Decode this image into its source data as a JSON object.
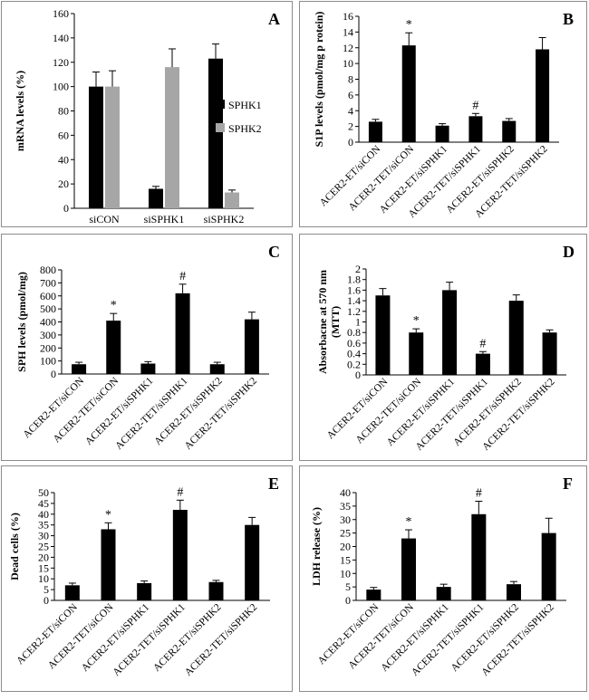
{
  "chart_data": [
    {
      "panel": "A",
      "type": "bar",
      "ylabel": "mRNA levels (%)",
      "ylim": [
        0,
        160
      ],
      "yticks": [
        0,
        20,
        40,
        60,
        80,
        100,
        120,
        140,
        160
      ],
      "categories": [
        "siCON",
        "siSPHK1",
        "siSPHK2"
      ],
      "series": [
        {
          "name": "SPHK1",
          "color": "#000000",
          "values": [
            100,
            16,
            123
          ],
          "errors": [
            12,
            2,
            12
          ]
        },
        {
          "name": "SPHK2",
          "color": "#a6a6a6",
          "values": [
            100,
            116,
            13
          ],
          "errors": [
            13,
            15,
            2
          ]
        }
      ],
      "annotations": [],
      "legend": "right"
    },
    {
      "panel": "B",
      "type": "bar",
      "ylabel": "S1P levels (pmol/mg p rotein)",
      "ylim": [
        0,
        16
      ],
      "yticks": [
        0,
        2,
        4,
        6,
        8,
        10,
        12,
        14,
        16
      ],
      "categories": [
        "ACER2-ET/siCON",
        "ACER2-TET/siCON",
        "ACER2-ET/siSPHK1",
        "ACER2-TET/siSPHK1",
        "ACER2-ET/siSPHK2",
        "ACER2-TET/siSPHK2"
      ],
      "series": [
        {
          "name": "",
          "color": "#000000",
          "values": [
            2.6,
            12.3,
            2.1,
            3.3,
            2.7,
            11.8
          ],
          "errors": [
            0.3,
            1.6,
            0.25,
            0.35,
            0.3,
            1.5
          ]
        }
      ],
      "annotations": [
        {
          "index": 1,
          "text": "*"
        },
        {
          "index": 3,
          "text": "#"
        }
      ]
    },
    {
      "panel": "C",
      "type": "bar",
      "ylabel": "SPH levels (pmol/mg)",
      "ylim": [
        0,
        800
      ],
      "yticks": [
        0,
        100,
        200,
        300,
        400,
        500,
        600,
        700,
        800
      ],
      "categories": [
        "ACER2-ET/siCON",
        "ACER2-TET/siCON",
        "ACER2-ET/siSPHK1",
        "ACER2-TET/siSPHK1",
        "ACER2-ET/siSPHK2",
        "ACER2-TET/siSPHK2"
      ],
      "series": [
        {
          "name": "",
          "color": "#000000",
          "values": [
            75,
            410,
            80,
            620,
            75,
            420
          ],
          "errors": [
            15,
            55,
            15,
            70,
            15,
            55
          ]
        }
      ],
      "annotations": [
        {
          "index": 1,
          "text": "*"
        },
        {
          "index": 3,
          "text": "#"
        }
      ]
    },
    {
      "panel": "D",
      "type": "bar",
      "ylabel": "Absorbacne at 570 nm (MTT)",
      "ylim": [
        0,
        2
      ],
      "yticks": [
        0,
        0.2,
        0.4,
        0.6,
        0.8,
        1,
        1.2,
        1.4,
        1.6,
        1.8,
        2
      ],
      "categories": [
        "ACER2-ET/siCON",
        "ACER2-TET/siCON",
        "ACER2-ET/siSPHK1",
        "ACER2-TET/siSPHK1",
        "ACER2-ET/siSPHK2",
        "ACER2-TET/siSPHK2"
      ],
      "series": [
        {
          "name": "",
          "color": "#000000",
          "values": [
            1.5,
            0.8,
            1.6,
            0.4,
            1.4,
            0.8
          ],
          "errors": [
            0.13,
            0.07,
            0.15,
            0.04,
            0.11,
            0.05
          ]
        }
      ],
      "annotations": [
        {
          "index": 1,
          "text": "*"
        },
        {
          "index": 3,
          "text": "#"
        }
      ]
    },
    {
      "panel": "E",
      "type": "bar",
      "ylabel": "Dead cells (%)",
      "ylim": [
        0,
        50
      ],
      "yticks": [
        0,
        5,
        10,
        15,
        20,
        25,
        30,
        35,
        40,
        45,
        50
      ],
      "categories": [
        "ACER2-ET/siCON",
        "ACER2-TET/siCON",
        "ACER2-ET/siSPHK1",
        "ACER2-TET/siSPHK1",
        "ACER2-ET/siSPHK2",
        "ACER2-TET/siSPHK2"
      ],
      "series": [
        {
          "name": "",
          "color": "#000000",
          "values": [
            7,
            33,
            8,
            42,
            8.5,
            35
          ],
          "errors": [
            1,
            3,
            1,
            4.5,
            0.8,
            3.5
          ]
        }
      ],
      "annotations": [
        {
          "index": 1,
          "text": "*"
        },
        {
          "index": 3,
          "text": "#"
        }
      ]
    },
    {
      "panel": "F",
      "type": "bar",
      "ylabel": "LDH release (%)",
      "ylim": [
        0,
        40
      ],
      "yticks": [
        0,
        5,
        10,
        15,
        20,
        25,
        30,
        35,
        40
      ],
      "categories": [
        "ACER2-ET/siCON",
        "ACER2-TET/siCON",
        "ACER2-ET/siSPHK1",
        "ACER2-TET/siSPHK1",
        "ACER2-ET/siSPHK2",
        "ACER2-TET/siSPHK2"
      ],
      "series": [
        {
          "name": "",
          "color": "#000000",
          "values": [
            4,
            23,
            5,
            32,
            6,
            25
          ],
          "errors": [
            0.8,
            3.2,
            1,
            4.8,
            1,
            5.5
          ]
        }
      ],
      "annotations": [
        {
          "index": 1,
          "text": "*"
        },
        {
          "index": 3,
          "text": "#"
        }
      ]
    }
  ]
}
